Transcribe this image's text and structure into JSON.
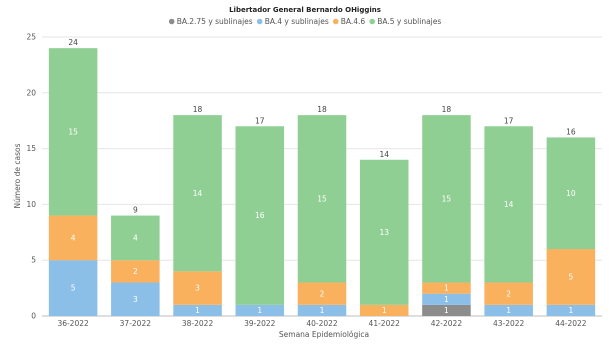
{
  "chart_data": {
    "type": "bar",
    "stacked": true,
    "title": "Libertador General Bernardo OHiggins",
    "xlabel": "Semana Epidemiológica",
    "ylabel": "Número de casos",
    "ylim": [
      0,
      25
    ],
    "yticks": [
      0,
      5,
      10,
      15,
      20,
      25
    ],
    "grid": true,
    "legend_position": "top-center",
    "categories": [
      "36-2022",
      "37-2022",
      "38-2022",
      "39-2022",
      "40-2022",
      "41-2022",
      "42-2022",
      "43-2022",
      "44-2022"
    ],
    "series": [
      {
        "name": "BA.2.75 y sublinajes",
        "color": "#8c8c8c",
        "values": [
          0,
          0,
          0,
          0,
          0,
          0,
          1,
          0,
          0
        ]
      },
      {
        "name": "BA.4 y sublinajes",
        "color": "#8cbfe8",
        "values": [
          5,
          3,
          1,
          1,
          1,
          0,
          1,
          1,
          1
        ]
      },
      {
        "name": "BA.4.6",
        "color": "#f9b15e",
        "values": [
          4,
          2,
          3,
          0,
          2,
          1,
          1,
          2,
          5
        ]
      },
      {
        "name": "BA.5 y sublinajes",
        "color": "#90cf93",
        "values": [
          15,
          4,
          14,
          16,
          15,
          13,
          15,
          14,
          10
        ]
      }
    ],
    "totals": [
      24,
      9,
      18,
      17,
      18,
      14,
      18,
      17,
      16
    ]
  }
}
